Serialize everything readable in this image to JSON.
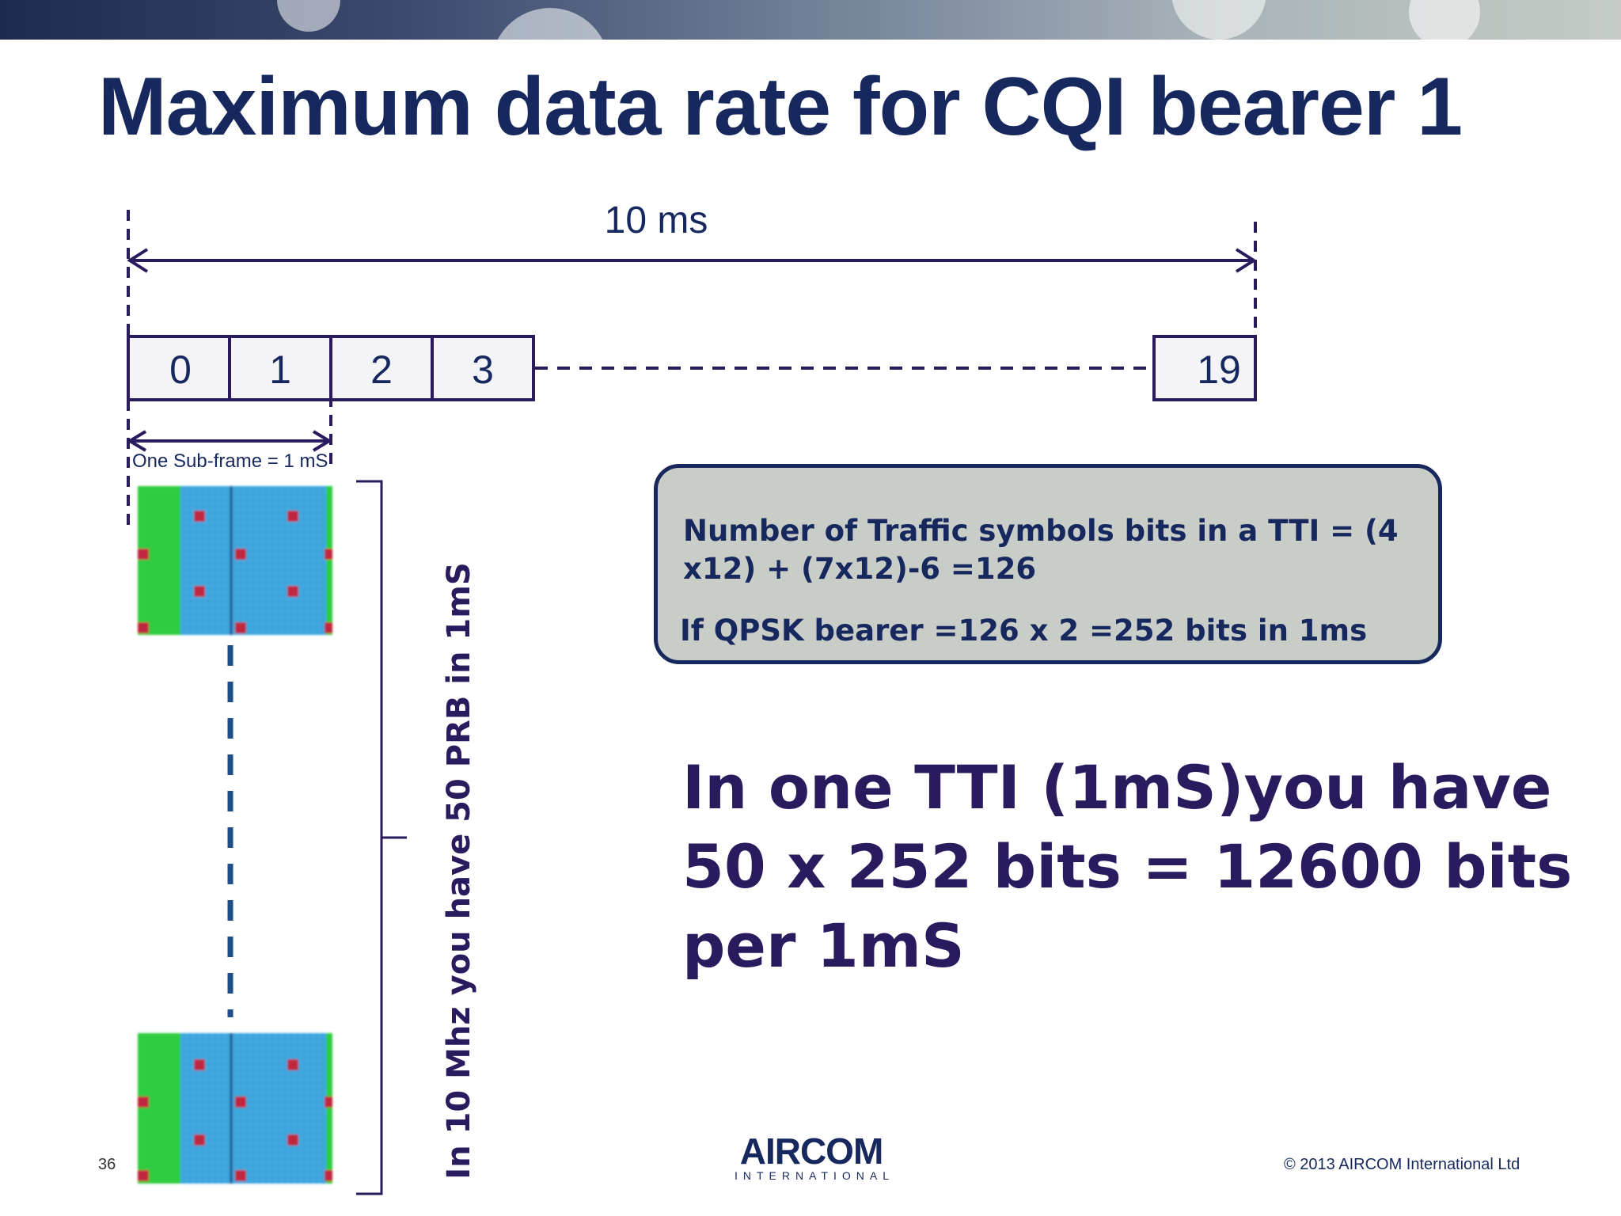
{
  "slide": {
    "title": "Maximum data rate for CQI bearer 1",
    "page_number": "36",
    "copyright": "© 2013 AIRCOM International Ltd"
  },
  "logo": {
    "main": "AIRCOM",
    "sub": "INTERNATIONAL"
  },
  "frame": {
    "duration_label": "10 ms",
    "subframes": [
      "0",
      "1",
      "2",
      "3",
      "19"
    ],
    "subframe_label": "One Sub-frame = 1 mS"
  },
  "prb": {
    "bracket_label": "In 10 Mhz you have 50 PRB in 1mS"
  },
  "info_box": {
    "line1": "Number of Traffic symbols bits in a TTI = (4 x12) + (7x12)-6 =126",
    "line2": "If QPSK bearer =126 x 2 =252 bits in 1ms"
  },
  "summary": "In one TTI (1mS)you have 50 x 252 bits = 12600 bits per 1mS",
  "colors": {
    "title": "#16285e",
    "line": "#2a1a5e",
    "control_region": "#2ecc40",
    "data_region": "#3fa9e0",
    "reference_signal": "#c0283c",
    "box_fill": "#c8cdc8"
  }
}
